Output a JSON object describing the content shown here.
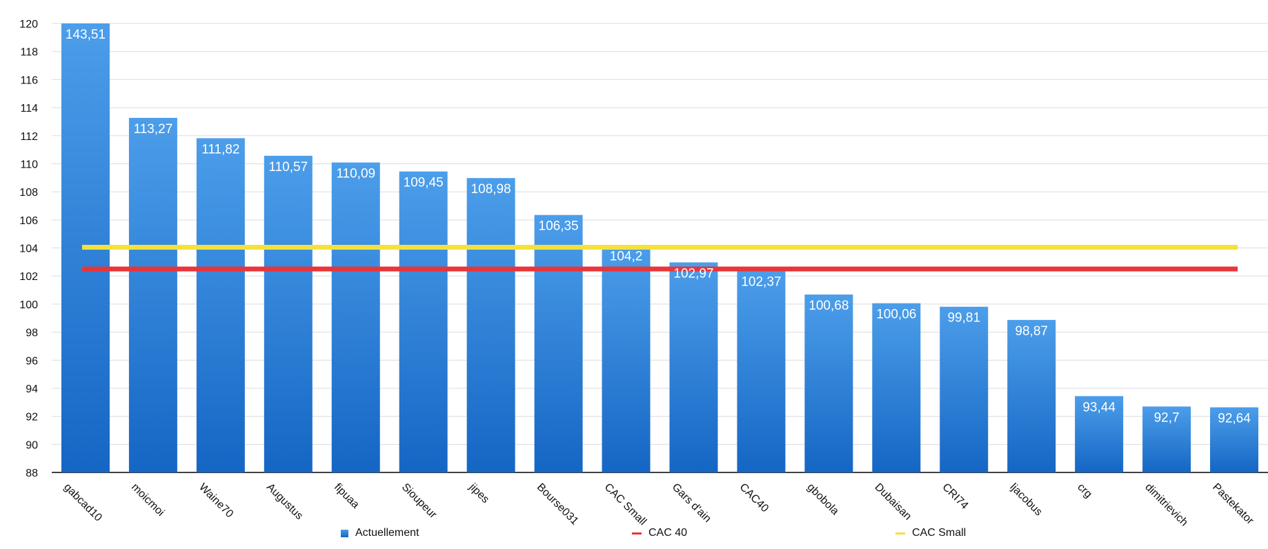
{
  "chart_data": {
    "type": "bar",
    "categories": [
      "gabcad10",
      "moicmoi",
      "Waine70",
      "Augustus",
      "fipuaa",
      "Sioupeur",
      "jipes",
      "Bourse031",
      "CAC Small",
      "Gars d'ain",
      "CAC40",
      "gbobola",
      "Dubaisan",
      "CRI74",
      "ljacobus",
      "crg",
      "dimitrievich",
      "Pastekator"
    ],
    "series": [
      {
        "name": "Actuellement",
        "values": [
          143.51,
          113.27,
          111.82,
          110.57,
          110.09,
          109.45,
          108.98,
          106.35,
          104.2,
          102.97,
          102.37,
          100.68,
          100.06,
          99.81,
          98.87,
          93.44,
          92.7,
          92.64
        ],
        "value_labels": [
          "143,51",
          "113,27",
          "111,82",
          "110,57",
          "110,09",
          "109,45",
          "108,98",
          "106,35",
          "104,2",
          "102,97",
          "102,37",
          "100,68",
          "100,06",
          "99,81",
          "98,87",
          "93,44",
          "92,7",
          "92,64"
        ],
        "color": "#2f84db"
      }
    ],
    "reference_lines": [
      {
        "name": "CAC 40",
        "value": 102.5,
        "color": "#e8353a"
      },
      {
        "name": "CAC Small",
        "value": 104.05,
        "color": "#f5e13c"
      }
    ],
    "yticks": [
      "88",
      "90",
      "92",
      "94",
      "96",
      "98",
      "100",
      "102",
      "104",
      "106",
      "108",
      "110",
      "112",
      "114",
      "116",
      "118",
      "120"
    ],
    "ylim": [
      88,
      120
    ],
    "grid": true,
    "legend_position": "bottom",
    "legend": {
      "series_label": "Actuellement",
      "cac40_label": "CAC 40",
      "cacsmall_label": "CAC Small"
    }
  }
}
